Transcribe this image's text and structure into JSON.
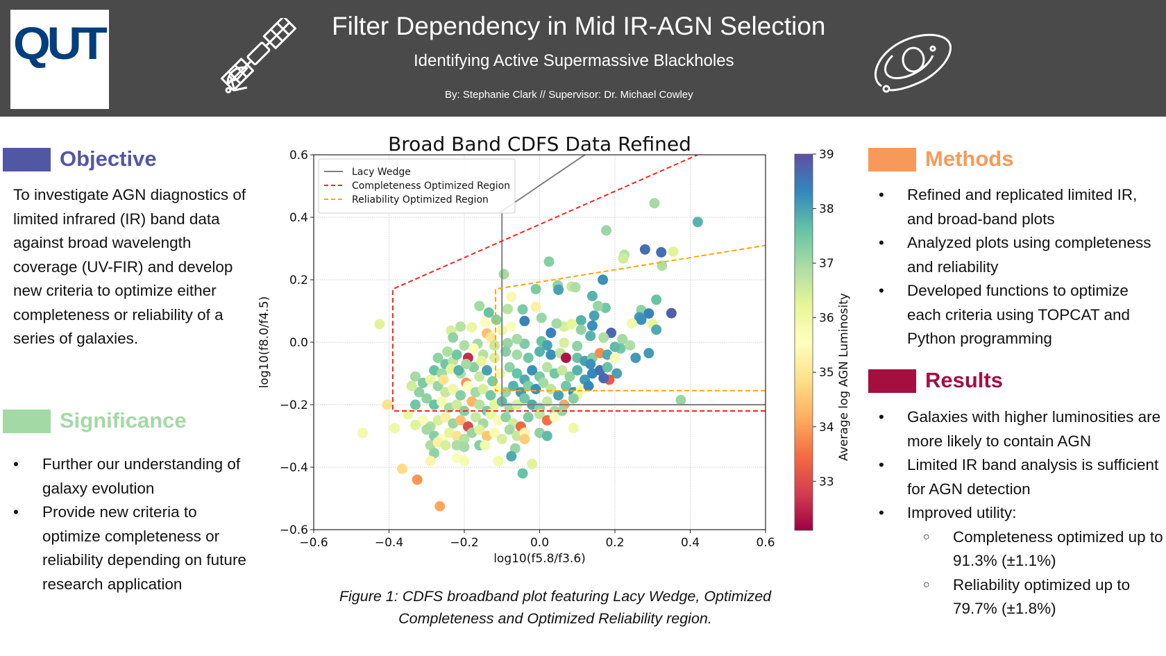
{
  "header": {
    "logo_text": "QUT",
    "title": "Filter Dependency in Mid IR-AGN Selection",
    "subtitle": "Identifying Active Supermassive Blackholes",
    "byline": "By: Stephanie Clark  //   Supervisor: Dr. Michael Cowley",
    "icons": [
      "satellite-icon",
      "galaxy-icon"
    ]
  },
  "sections": {
    "objective": {
      "heading": "Objective",
      "color": "#5257a3",
      "text": "To investigate AGN diagnostics of limited infrared (IR) band data against broad wavelength coverage (UV-FIR) and develop new criteria to optimize either completeness or reliability of a series of galaxies."
    },
    "significance": {
      "heading": "Significance",
      "color": "#a3d9a5",
      "bullets": [
        "Further our understanding of galaxy evolution",
        "Provide new criteria to optimize completeness or reliability depending on future research application"
      ]
    },
    "methods": {
      "heading": "Methods",
      "color": "#f79a59",
      "bullets": [
        "Refined and replicated limited IR, and broad-band plots",
        "Analyzed plots using completeness and reliability",
        "Developed functions to optimize each criteria using TOPCAT and Python programming"
      ]
    },
    "results": {
      "heading": "Results",
      "color": "#a50f40",
      "bullets": [
        "Galaxies with higher luminosities are more likely to contain AGN",
        "Limited IR band analysis is sufficient for AGN detection",
        "Improved utility:"
      ],
      "sub_bullets": [
        "Completeness optimized up to 91.3% (±1.1%)",
        "Reliability optimized up to 79.7% (±1.8%)"
      ],
      "bullet_char": "•",
      "sub_bullet_char": "○"
    }
  },
  "caption": "Figure 1: CDFS broadband plot featuring Lacy Wedge, Optimized Completeness and Optimized Reliability region.",
  "chart_data": {
    "type": "scatter",
    "title": "Broad Band CDFS Data Refined",
    "xlabel": "log10(f5.8/f3.6)",
    "ylabel": "log10(f8.0/f4.5)",
    "xlim": [
      -0.6,
      0.6
    ],
    "ylim": [
      -0.6,
      0.6
    ],
    "xticks": [
      "−0.6",
      "−0.4",
      "−0.2",
      "0.0",
      "0.2",
      "0.4",
      "0.6"
    ],
    "yticks": [
      "−0.6",
      "−0.4",
      "−0.2",
      "0.0",
      "0.2",
      "0.4",
      "0.6"
    ],
    "xtick_values": [
      -0.6,
      -0.4,
      -0.2,
      0.0,
      0.2,
      0.4,
      0.6
    ],
    "ytick_values": [
      -0.6,
      -0.4,
      -0.2,
      0.0,
      0.2,
      0.4,
      0.6
    ],
    "grid": true,
    "legend_position": "top-left",
    "colorbar": {
      "label": "Average log AGN Luminosity",
      "range": [
        32.1,
        39
      ],
      "ticks": [
        "33",
        "34",
        "35",
        "36",
        "37",
        "38",
        "39"
      ],
      "tick_values": [
        33,
        34,
        35,
        36,
        37,
        38,
        39
      ],
      "colormap": "Spectral"
    },
    "regions": [
      {
        "name": "Lacy Wedge",
        "color": "#808080",
        "style": "solid",
        "points": [
          [
            0.6,
            -0.2
          ],
          [
            -0.1,
            -0.2
          ],
          [
            -0.1,
            0.42
          ],
          [
            0.12,
            0.6
          ]
        ]
      },
      {
        "name": "Completeness Optimized Region",
        "color": "#ff2020",
        "style": "dashed",
        "points": [
          [
            0.6,
            -0.22
          ],
          [
            -0.39,
            -0.22
          ],
          [
            -0.39,
            0.17
          ],
          [
            0.42,
            0.6
          ]
        ]
      },
      {
        "name": "Reliability Optimized Region",
        "color": "#ffa500",
        "style": "dashed",
        "points": [
          [
            0.6,
            -0.155
          ],
          [
            -0.117,
            -0.155
          ],
          [
            -0.117,
            0.17
          ],
          [
            0.6,
            0.31
          ]
        ]
      }
    ],
    "points": [
      [
        0.305,
        0.445,
        37.0
      ],
      [
        0.42,
        0.385,
        37.8
      ],
      [
        0.177,
        0.358,
        37.1
      ],
      [
        0.28,
        0.297,
        38.6
      ],
      [
        0.323,
        0.288,
        38.6
      ],
      [
        0.355,
        0.29,
        36.3
      ],
      [
        0.225,
        0.28,
        36.8
      ],
      [
        0.222,
        0.268,
        36.5
      ],
      [
        0.325,
        0.245,
        36.9
      ],
      [
        0.025,
        0.258,
        37.3
      ],
      [
        -0.095,
        0.218,
        37.0
      ],
      [
        0.168,
        0.2,
        38.2
      ],
      [
        0.048,
        0.182,
        37.2
      ],
      [
        0.05,
        0.168,
        38.0
      ],
      [
        0.085,
        0.178,
        36.6
      ],
      [
        0.095,
        0.176,
        36.9
      ],
      [
        -0.01,
        0.17,
        37.4
      ],
      [
        -0.075,
        0.145,
        35.8
      ],
      [
        0.14,
        0.148,
        37.8
      ],
      [
        0.31,
        0.136,
        37.6
      ],
      [
        -0.16,
        0.116,
        37.0
      ],
      [
        -0.01,
        0.113,
        35.2
      ],
      [
        -0.045,
        0.105,
        37.4
      ],
      [
        -0.085,
        0.106,
        36.8
      ],
      [
        -0.135,
        0.095,
        37.6
      ],
      [
        0.175,
        0.11,
        37.5
      ],
      [
        0.155,
        0.116,
        37.1
      ],
      [
        0.27,
        0.103,
        37.2
      ],
      [
        0.29,
        0.092,
        38.4
      ],
      [
        0.35,
        0.093,
        38.8
      ],
      [
        0.265,
        0.08,
        38.1
      ],
      [
        0.27,
        0.072,
        38.2
      ],
      [
        -0.04,
        0.068,
        38.4
      ],
      [
        0.005,
        0.078,
        37.1
      ],
      [
        0.11,
        0.07,
        37.8
      ],
      [
        0.145,
        0.085,
        38.0
      ],
      [
        0.3,
        0.058,
        36.2
      ],
      [
        0.245,
        0.06,
        35.9
      ],
      [
        -0.115,
        0.072,
        37.3
      ],
      [
        -0.145,
        0.065,
        35.6
      ],
      [
        -0.425,
        0.058,
        36.3
      ],
      [
        -0.18,
        0.048,
        36.1
      ],
      [
        -0.21,
        0.05,
        36.8
      ],
      [
        0.065,
        0.05,
        36.4
      ],
      [
        0.085,
        0.058,
        36.2
      ],
      [
        0.14,
        0.053,
        38.2
      ],
      [
        0.31,
        0.04,
        37.9
      ],
      [
        -0.235,
        0.037,
        36.4
      ],
      [
        -0.1,
        0.038,
        36.0
      ],
      [
        -0.14,
        0.028,
        34.4
      ],
      [
        0.19,
        0.03,
        38.7
      ],
      [
        -0.13,
        0.016,
        35.0
      ],
      [
        -0.23,
        0.015,
        37.2
      ],
      [
        0.135,
        0.02,
        37.8
      ],
      [
        0.17,
        0.015,
        36.9
      ],
      [
        0.065,
        -0.002,
        36.4
      ],
      [
        -0.04,
        -0.005,
        37.4
      ],
      [
        -0.085,
        -0.003,
        37.1
      ],
      [
        0.005,
        0.003,
        37.6
      ],
      [
        0.02,
        -0.01,
        38.0
      ],
      [
        0.22,
        0.01,
        37.0
      ],
      [
        -0.2,
        -0.01,
        36.9
      ],
      [
        -0.165,
        -0.005,
        37.0
      ],
      [
        -0.12,
        -0.01,
        36.6
      ],
      [
        0.1,
        -0.012,
        37.2
      ],
      [
        -0.27,
        -0.05,
        37.2
      ],
      [
        -0.25,
        -0.07,
        37.5
      ],
      [
        -0.23,
        -0.06,
        36.7
      ],
      [
        -0.19,
        -0.05,
        32.6
      ],
      [
        -0.15,
        -0.04,
        36.8
      ],
      [
        -0.12,
        -0.05,
        36.4
      ],
      [
        -0.09,
        -0.03,
        37.3
      ],
      [
        -0.06,
        -0.04,
        37.0
      ],
      [
        -0.03,
        -0.05,
        37.5
      ],
      [
        0.0,
        -0.03,
        37.8
      ],
      [
        0.03,
        -0.04,
        38.2
      ],
      [
        0.055,
        -0.035,
        36.7
      ],
      [
        0.07,
        -0.05,
        32.3
      ],
      [
        0.1,
        -0.05,
        37.6
      ],
      [
        0.12,
        -0.06,
        38.0
      ],
      [
        0.14,
        -0.05,
        37.3
      ],
      [
        0.16,
        -0.035,
        33.8
      ],
      [
        0.18,
        -0.04,
        37.9
      ],
      [
        0.2,
        -0.05,
        35.4
      ],
      [
        0.215,
        -0.02,
        37.5
      ],
      [
        0.255,
        -0.05,
        38.1
      ],
      [
        0.29,
        -0.035,
        38.1
      ],
      [
        0.24,
        -0.01,
        36.9
      ],
      [
        0.2,
        -0.015,
        37.7
      ],
      [
        0.135,
        -0.07,
        38.2
      ],
      [
        -0.28,
        -0.09,
        37.6
      ],
      [
        -0.26,
        -0.1,
        37.0
      ],
      [
        -0.235,
        -0.085,
        36.2
      ],
      [
        -0.21,
        -0.1,
        36.9
      ],
      [
        -0.195,
        -0.13,
        33.9
      ],
      [
        -0.175,
        -0.08,
        37.3
      ],
      [
        -0.16,
        -0.11,
        36.6
      ],
      [
        -0.14,
        -0.09,
        38.0
      ],
      [
        -0.125,
        -0.125,
        37.4
      ],
      [
        -0.105,
        -0.1,
        35.9
      ],
      [
        -0.08,
        -0.08,
        37.2
      ],
      [
        -0.06,
        -0.1,
        37.6
      ],
      [
        -0.04,
        -0.12,
        37.9
      ],
      [
        -0.02,
        -0.09,
        38.2
      ],
      [
        0.0,
        -0.11,
        37.4
      ],
      [
        0.02,
        -0.08,
        36.8
      ],
      [
        0.04,
        -0.1,
        37.5
      ],
      [
        0.06,
        -0.09,
        36.6
      ],
      [
        0.08,
        -0.11,
        37.2
      ],
      [
        0.1,
        -0.09,
        37.8
      ],
      [
        0.12,
        -0.12,
        38.1
      ],
      [
        0.14,
        -0.1,
        38.3
      ],
      [
        0.16,
        -0.09,
        38.6
      ],
      [
        0.18,
        -0.08,
        37.6
      ],
      [
        0.205,
        -0.1,
        38.0
      ],
      [
        0.185,
        -0.12,
        33.2
      ],
      [
        0.17,
        -0.115,
        38.7
      ],
      [
        -0.33,
        -0.11,
        37.0
      ],
      [
        -0.31,
        -0.13,
        37.4
      ],
      [
        -0.29,
        -0.12,
        36.1
      ],
      [
        -0.27,
        -0.14,
        37.1
      ],
      [
        -0.25,
        -0.16,
        36.6
      ],
      [
        -0.23,
        -0.15,
        36.0
      ],
      [
        -0.21,
        -0.17,
        37.3
      ],
      [
        -0.19,
        -0.14,
        35.5
      ],
      [
        -0.17,
        -0.16,
        37.0
      ],
      [
        -0.15,
        -0.15,
        36.4
      ],
      [
        -0.13,
        -0.17,
        37.5
      ],
      [
        -0.11,
        -0.15,
        35.8
      ],
      [
        -0.09,
        -0.16,
        37.1
      ],
      [
        -0.07,
        -0.14,
        37.8
      ],
      [
        -0.05,
        -0.16,
        38.1
      ],
      [
        -0.03,
        -0.14,
        37.3
      ],
      [
        -0.01,
        -0.15,
        38.2
      ],
      [
        0.01,
        -0.13,
        37.0
      ],
      [
        0.03,
        -0.15,
        36.7
      ],
      [
        0.05,
        -0.17,
        38.0
      ],
      [
        0.07,
        -0.14,
        37.5
      ],
      [
        0.09,
        -0.16,
        38.2
      ],
      [
        0.11,
        -0.15,
        35.9
      ],
      [
        0.13,
        -0.14,
        38.3
      ],
      [
        0.1,
        -0.17,
        36.0
      ],
      [
        0.375,
        -0.185,
        37.1
      ],
      [
        -0.3,
        -0.18,
        37.2
      ],
      [
        -0.28,
        -0.2,
        37.6
      ],
      [
        -0.26,
        -0.19,
        35.8
      ],
      [
        -0.24,
        -0.21,
        37.0
      ],
      [
        -0.22,
        -0.2,
        36.5
      ],
      [
        -0.2,
        -0.22,
        37.3
      ],
      [
        -0.18,
        -0.19,
        34.3
      ],
      [
        -0.16,
        -0.2,
        36.8
      ],
      [
        -0.14,
        -0.22,
        37.4
      ],
      [
        -0.12,
        -0.2,
        36.2
      ],
      [
        -0.1,
        -0.19,
        37.7
      ],
      [
        -0.08,
        -0.21,
        37.0
      ],
      [
        -0.06,
        -0.2,
        36.4
      ],
      [
        -0.04,
        -0.18,
        37.5
      ],
      [
        -0.02,
        -0.2,
        37.9
      ],
      [
        0.0,
        -0.21,
        37.2
      ],
      [
        0.02,
        -0.19,
        36.6
      ],
      [
        0.04,
        -0.22,
        37.0
      ],
      [
        0.065,
        -0.2,
        34.1
      ],
      [
        0.09,
        -0.18,
        37.3
      ],
      [
        -0.405,
        -0.2,
        34.9
      ],
      [
        -0.33,
        -0.2,
        37.5
      ],
      [
        -0.31,
        -0.25,
        35.7
      ],
      [
        -0.29,
        -0.27,
        36.9
      ],
      [
        -0.27,
        -0.25,
        36.4
      ],
      [
        -0.25,
        -0.24,
        35.2
      ],
      [
        -0.23,
        -0.26,
        37.1
      ],
      [
        -0.21,
        -0.25,
        34.4
      ],
      [
        -0.19,
        -0.27,
        33.0
      ],
      [
        -0.17,
        -0.24,
        36.6
      ],
      [
        -0.15,
        -0.26,
        37.0
      ],
      [
        -0.13,
        -0.23,
        36.1
      ],
      [
        -0.11,
        -0.25,
        35.4
      ],
      [
        -0.09,
        -0.24,
        37.2
      ],
      [
        -0.07,
        -0.26,
        36.5
      ],
      [
        -0.05,
        -0.27,
        33.4
      ],
      [
        -0.03,
        -0.24,
        37.4
      ],
      [
        0.0,
        -0.23,
        36.7
      ],
      [
        0.02,
        -0.25,
        33.5
      ],
      [
        0.04,
        -0.24,
        35.5
      ],
      [
        0.06,
        -0.22,
        37.1
      ],
      [
        -0.47,
        -0.29,
        35.9
      ],
      [
        -0.385,
        -0.275,
        36.0
      ],
      [
        -0.33,
        -0.265,
        36.3
      ],
      [
        -0.3,
        -0.28,
        37.0
      ],
      [
        -0.28,
        -0.3,
        37.3
      ],
      [
        -0.26,
        -0.31,
        35.6
      ],
      [
        -0.24,
        -0.29,
        36.2
      ],
      [
        -0.22,
        -0.3,
        34.9
      ],
      [
        -0.2,
        -0.31,
        36.8
      ],
      [
        -0.18,
        -0.29,
        37.1
      ],
      [
        -0.16,
        -0.28,
        36.3
      ],
      [
        -0.14,
        -0.3,
        34.5
      ],
      [
        -0.12,
        -0.29,
        35.8
      ],
      [
        -0.1,
        -0.31,
        36.4
      ],
      [
        -0.08,
        -0.28,
        37.0
      ],
      [
        -0.06,
        -0.3,
        36.6
      ],
      [
        -0.04,
        -0.29,
        35.3
      ],
      [
        0.0,
        -0.29,
        37.2
      ],
      [
        0.02,
        -0.3,
        37.7
      ],
      [
        0.09,
        -0.275,
        36.0
      ],
      [
        -0.29,
        -0.33,
        36.9
      ],
      [
        -0.27,
        -0.32,
        35.2
      ],
      [
        -0.25,
        -0.33,
        36.4
      ],
      [
        -0.22,
        -0.33,
        36.9
      ],
      [
        -0.2,
        -0.335,
        37.0
      ],
      [
        -0.16,
        -0.33,
        37.3
      ],
      [
        -0.145,
        -0.33,
        35.9
      ],
      [
        -0.065,
        -0.34,
        37.1
      ],
      [
        -0.04,
        -0.31,
        34.6
      ],
      [
        -0.28,
        -0.355,
        37.2
      ],
      [
        -0.22,
        -0.37,
        35.7
      ],
      [
        -0.2,
        -0.38,
        35.8
      ],
      [
        -0.29,
        -0.38,
        35.3
      ],
      [
        -0.11,
        -0.38,
        35.9
      ],
      [
        -0.075,
        -0.365,
        37.9
      ],
      [
        -0.02,
        -0.39,
        36.3
      ],
      [
        -0.365,
        -0.405,
        34.8
      ],
      [
        -0.045,
        -0.42,
        37.6
      ],
      [
        -0.325,
        -0.44,
        33.9
      ],
      [
        -0.265,
        -0.525,
        34.1
      ],
      [
        -0.35,
        -0.23,
        36.1
      ],
      [
        -0.32,
        -0.16,
        37.2
      ],
      [
        -0.34,
        -0.14,
        36.5
      ],
      [
        -0.255,
        -0.12,
        34.9
      ],
      [
        -0.215,
        -0.09,
        37.8
      ],
      [
        -0.195,
        -0.07,
        37.0
      ],
      [
        -0.155,
        -0.06,
        36.2
      ],
      [
        -0.22,
        -0.04,
        37.5
      ],
      [
        -0.245,
        -0.03,
        36.9
      ],
      [
        -0.175,
        -0.02,
        35.6
      ],
      [
        -0.06,
        0.01,
        37.0
      ],
      [
        -0.075,
        0.05,
        35.6
      ],
      [
        0.045,
        0.06,
        37.0
      ],
      [
        0.11,
        0.04,
        37.2
      ],
      [
        0.03,
        0.03,
        38.4
      ]
    ]
  }
}
